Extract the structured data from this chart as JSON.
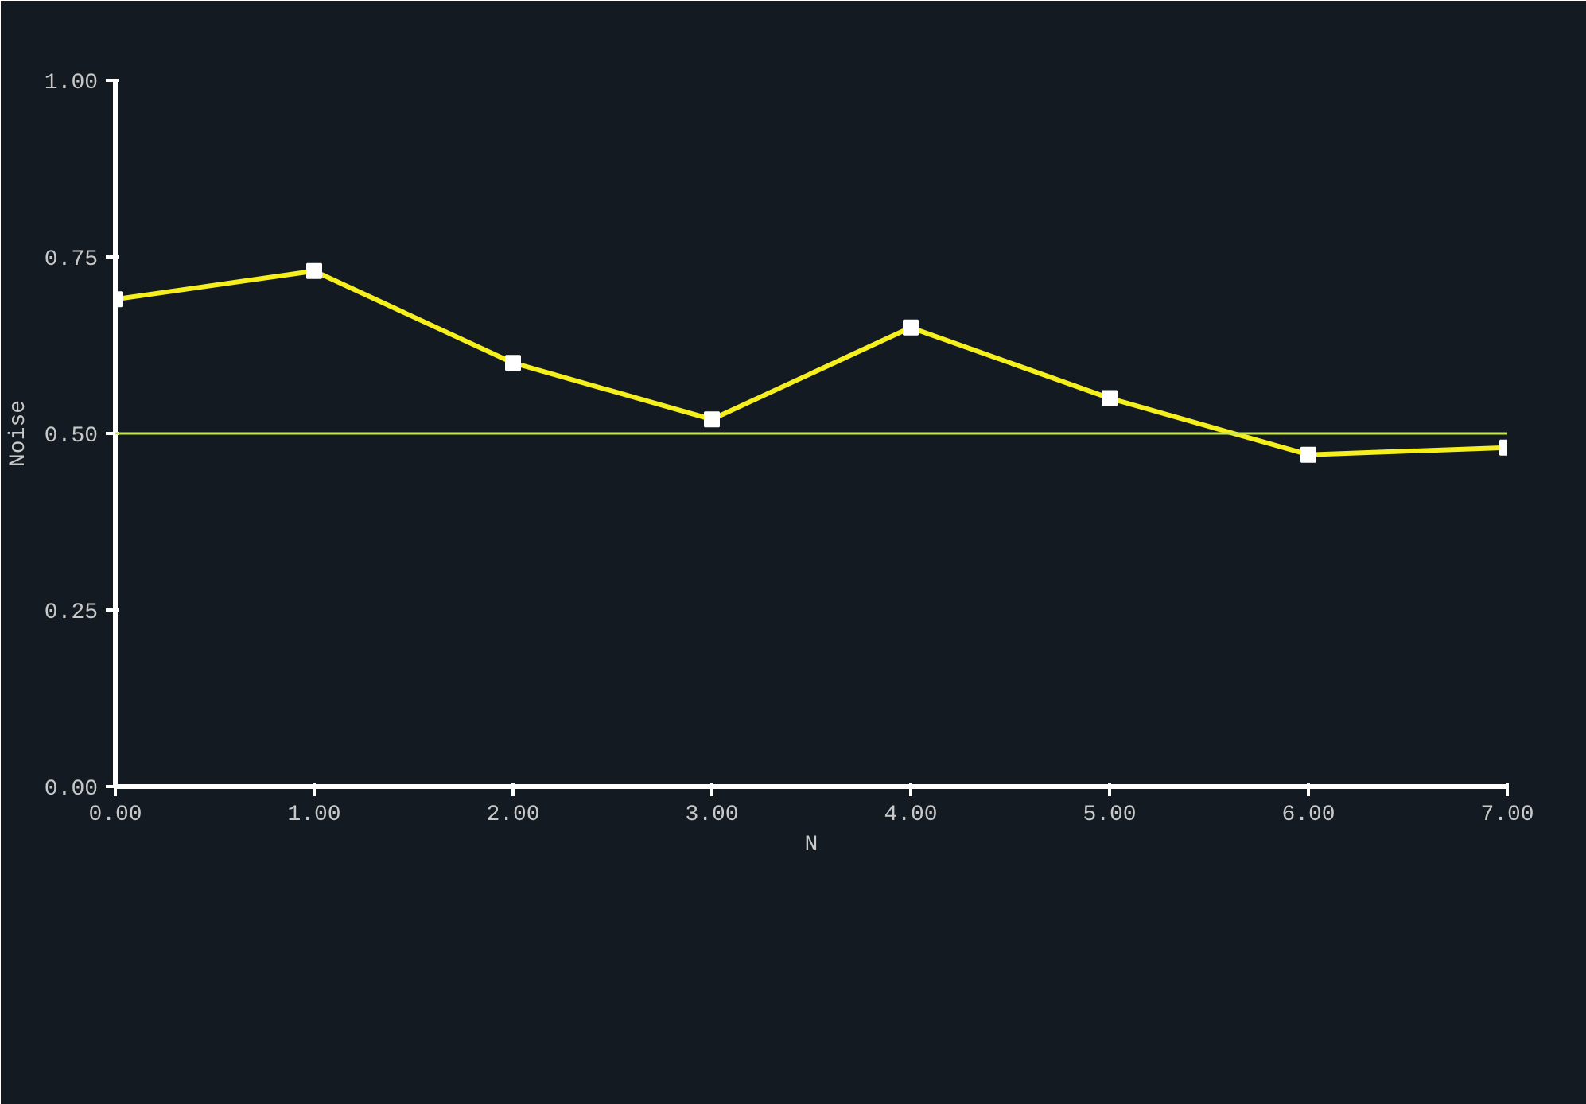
{
  "chart_data": {
    "type": "line",
    "xlabel": "N",
    "ylabel": "Noise",
    "x": [
      0,
      1,
      2,
      3,
      4,
      5,
      6,
      7
    ],
    "series": [
      {
        "color": "#f5ef1e",
        "values": [
          0.69,
          0.73,
          0.6,
          0.52,
          0.65,
          0.55,
          0.47,
          0.48
        ]
      }
    ],
    "xlim": [
      0,
      7
    ],
    "ylim": [
      0,
      1
    ],
    "xticks": [
      {
        "value": 0,
        "label": "0.00"
      },
      {
        "value": 1,
        "label": "1.00"
      },
      {
        "value": 2,
        "label": "2.00"
      },
      {
        "value": 3,
        "label": "3.00"
      },
      {
        "value": 4,
        "label": "4.00"
      },
      {
        "value": 5,
        "label": "5.00"
      },
      {
        "value": 6,
        "label": "6.00"
      },
      {
        "value": 7,
        "label": "7.00"
      }
    ],
    "yticks": [
      {
        "value": 0,
        "label": "0.00"
      },
      {
        "value": 0.25,
        "label": "0.25"
      },
      {
        "value": 0.5,
        "label": "0.50"
      },
      {
        "value": 0.75,
        "label": "0.75"
      },
      {
        "value": 1,
        "label": "1.00"
      }
    ],
    "ref_lines": [
      {
        "axis": "y",
        "value": 0.5,
        "color": "#c8e650"
      }
    ],
    "marker": "square",
    "line_style": "solid",
    "grid": false
  }
}
